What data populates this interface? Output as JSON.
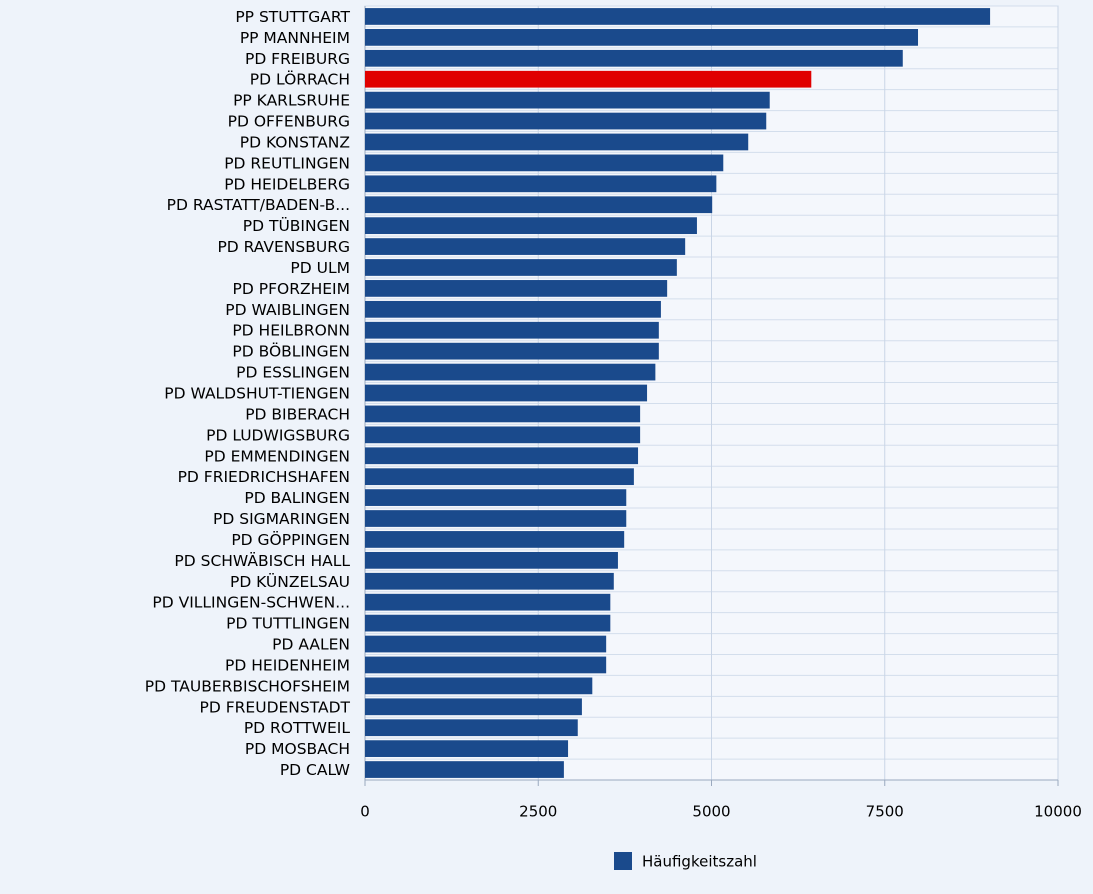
{
  "chart_data": {
    "type": "barh",
    "categories": [
      "PP STUTTGART",
      "PP MANNHEIM",
      "PD FREIBURG",
      "PD LÖRRACH",
      "PP KARLSRUHE",
      "PD OFFENBURG",
      "PD KONSTANZ",
      "PD REUTLINGEN",
      "PD HEIDELBERG",
      "PD RASTATT/BADEN-B...",
      "PD TÜBINGEN",
      "PD RAVENSBURG",
      "PD ULM",
      "PD PFORZHEIM",
      "PD WAIBLINGEN",
      "PD HEILBRONN",
      "PD BÖBLINGEN",
      "PD ESSLINGEN",
      "PD WALDSHUT-TIENGEN",
      "PD BIBERACH",
      "PD LUDWIGSBURG",
      "PD EMMENDINGEN",
      "PD FRIEDRICHSHAFEN",
      "PD BALINGEN",
      "PD SIGMARINGEN",
      "PD GÖPPINGEN",
      "PD SCHWÄBISCH HALL",
      "PD KÜNZELSAU",
      "PD VILLINGEN-SCHWEN...",
      "PD TUTTLINGEN",
      "PD AALEN",
      "PD HEIDENHEIM",
      "PD TAUBERBISCHOFSHEIM",
      "PD FREUDENSTADT",
      "PD ROTTWEIL",
      "PD MOSBACH",
      "PD CALW"
    ],
    "series": [
      {
        "name": "Häufigkeitszahl",
        "color": "#1a4a8c",
        "values": [
          9020,
          7980,
          7760,
          6440,
          5840,
          5790,
          5530,
          5170,
          5070,
          5010,
          4790,
          4620,
          4500,
          4360,
          4270,
          4240,
          4240,
          4190,
          4070,
          3970,
          3970,
          3940,
          3880,
          3770,
          3770,
          3740,
          3650,
          3590,
          3540,
          3540,
          3480,
          3480,
          3280,
          3130,
          3070,
          2930,
          2870
        ],
        "colors": [
          "#1a4a8c",
          "#1a4a8c",
          "#1a4a8c",
          "#e00000",
          "#1a4a8c",
          "#1a4a8c",
          "#1a4a8c",
          "#1a4a8c",
          "#1a4a8c",
          "#1a4a8c",
          "#1a4a8c",
          "#1a4a8c",
          "#1a4a8c",
          "#1a4a8c",
          "#1a4a8c",
          "#1a4a8c",
          "#1a4a8c",
          "#1a4a8c",
          "#1a4a8c",
          "#1a4a8c",
          "#1a4a8c",
          "#1a4a8c",
          "#1a4a8c",
          "#1a4a8c",
          "#1a4a8c",
          "#1a4a8c",
          "#1a4a8c",
          "#1a4a8c",
          "#1a4a8c",
          "#1a4a8c",
          "#1a4a8c",
          "#1a4a8c",
          "#1a4a8c",
          "#1a4a8c",
          "#1a4a8c",
          "#1a4a8c",
          "#1a4a8c"
        ]
      }
    ],
    "xlim": [
      0,
      10000
    ],
    "xticks": [
      0,
      2500,
      5000,
      7500,
      10000
    ],
    "grid": true,
    "legend": "bottom"
  }
}
